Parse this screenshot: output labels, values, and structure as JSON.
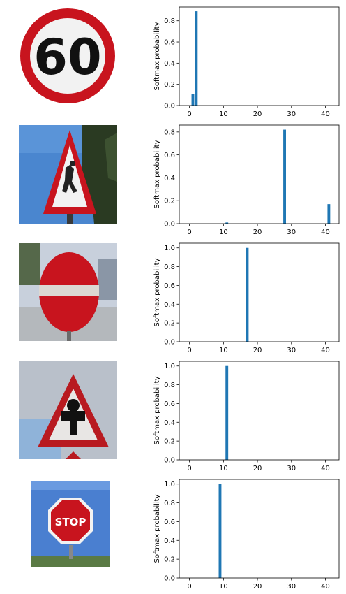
{
  "colors": {
    "bar": "#1f77b4",
    "sign_red": "#c8141e",
    "sign_white": "#f2f2f2",
    "sky_blue": "#4a86cf",
    "foliage": "#2a3a22",
    "pale_sky": "#c8d0dc",
    "overcast": "#b9c0ca"
  },
  "signs": [
    {
      "icon": "speed-limit-60-sign-icon",
      "text": "60"
    },
    {
      "icon": "children-crossing-sign-icon"
    },
    {
      "icon": "no-entry-sign-icon"
    },
    {
      "icon": "right-of-way-sign-icon"
    },
    {
      "icon": "stop-sign-icon",
      "text": "STOP"
    }
  ],
  "chart_data": [
    {
      "type": "bar",
      "ylabel": "Softmax probability",
      "xlim": [
        -3,
        44
      ],
      "ylim": [
        0,
        0.93
      ],
      "x": [
        1,
        2
      ],
      "values": [
        0.11,
        0.89
      ],
      "xticks": [
        0,
        10,
        20,
        30,
        40
      ],
      "yticks": [
        0.0,
        0.2,
        0.4,
        0.6,
        0.8
      ],
      "ytick_labels": [
        "0.0",
        "0.2",
        "0.4",
        "0.6",
        "0.8"
      ]
    },
    {
      "type": "bar",
      "ylabel": "Softmax probability",
      "xlim": [
        -3,
        44
      ],
      "ylim": [
        0,
        0.86
      ],
      "x": [
        11,
        28,
        41
      ],
      "values": [
        0.01,
        0.82,
        0.17
      ],
      "xticks": [
        0,
        10,
        20,
        30,
        40
      ],
      "yticks": [
        0.0,
        0.2,
        0.4,
        0.6,
        0.8
      ],
      "ytick_labels": [
        "0.0",
        "0.2",
        "0.4",
        "0.6",
        "0.8"
      ]
    },
    {
      "type": "bar",
      "ylabel": "Softmax probability",
      "xlim": [
        -3,
        44
      ],
      "ylim": [
        0,
        1.05
      ],
      "x": [
        17
      ],
      "values": [
        1.0
      ],
      "xticks": [
        0,
        10,
        20,
        30,
        40
      ],
      "yticks": [
        0.0,
        0.2,
        0.4,
        0.6,
        0.8,
        1.0
      ],
      "ytick_labels": [
        "0.0",
        "0.2",
        "0.4",
        "0.6",
        "0.8",
        "1.0"
      ]
    },
    {
      "type": "bar",
      "ylabel": "Softmax probability",
      "xlim": [
        -3,
        44
      ],
      "ylim": [
        0,
        1.05
      ],
      "x": [
        11
      ],
      "values": [
        1.0
      ],
      "xticks": [
        0,
        10,
        20,
        30,
        40
      ],
      "yticks": [
        0.0,
        0.2,
        0.4,
        0.6,
        0.8,
        1.0
      ],
      "ytick_labels": [
        "0.0",
        "0.2",
        "0.4",
        "0.6",
        "0.8",
        "1.0"
      ]
    },
    {
      "type": "bar",
      "ylabel": "Softmax probability",
      "xlim": [
        -3,
        44
      ],
      "ylim": [
        0,
        1.05
      ],
      "x": [
        9
      ],
      "values": [
        1.0
      ],
      "xticks": [
        0,
        10,
        20,
        30,
        40
      ],
      "yticks": [
        0.0,
        0.2,
        0.4,
        0.6,
        0.8,
        1.0
      ],
      "ytick_labels": [
        "0.0",
        "0.2",
        "0.4",
        "0.6",
        "0.8",
        "1.0"
      ]
    }
  ]
}
